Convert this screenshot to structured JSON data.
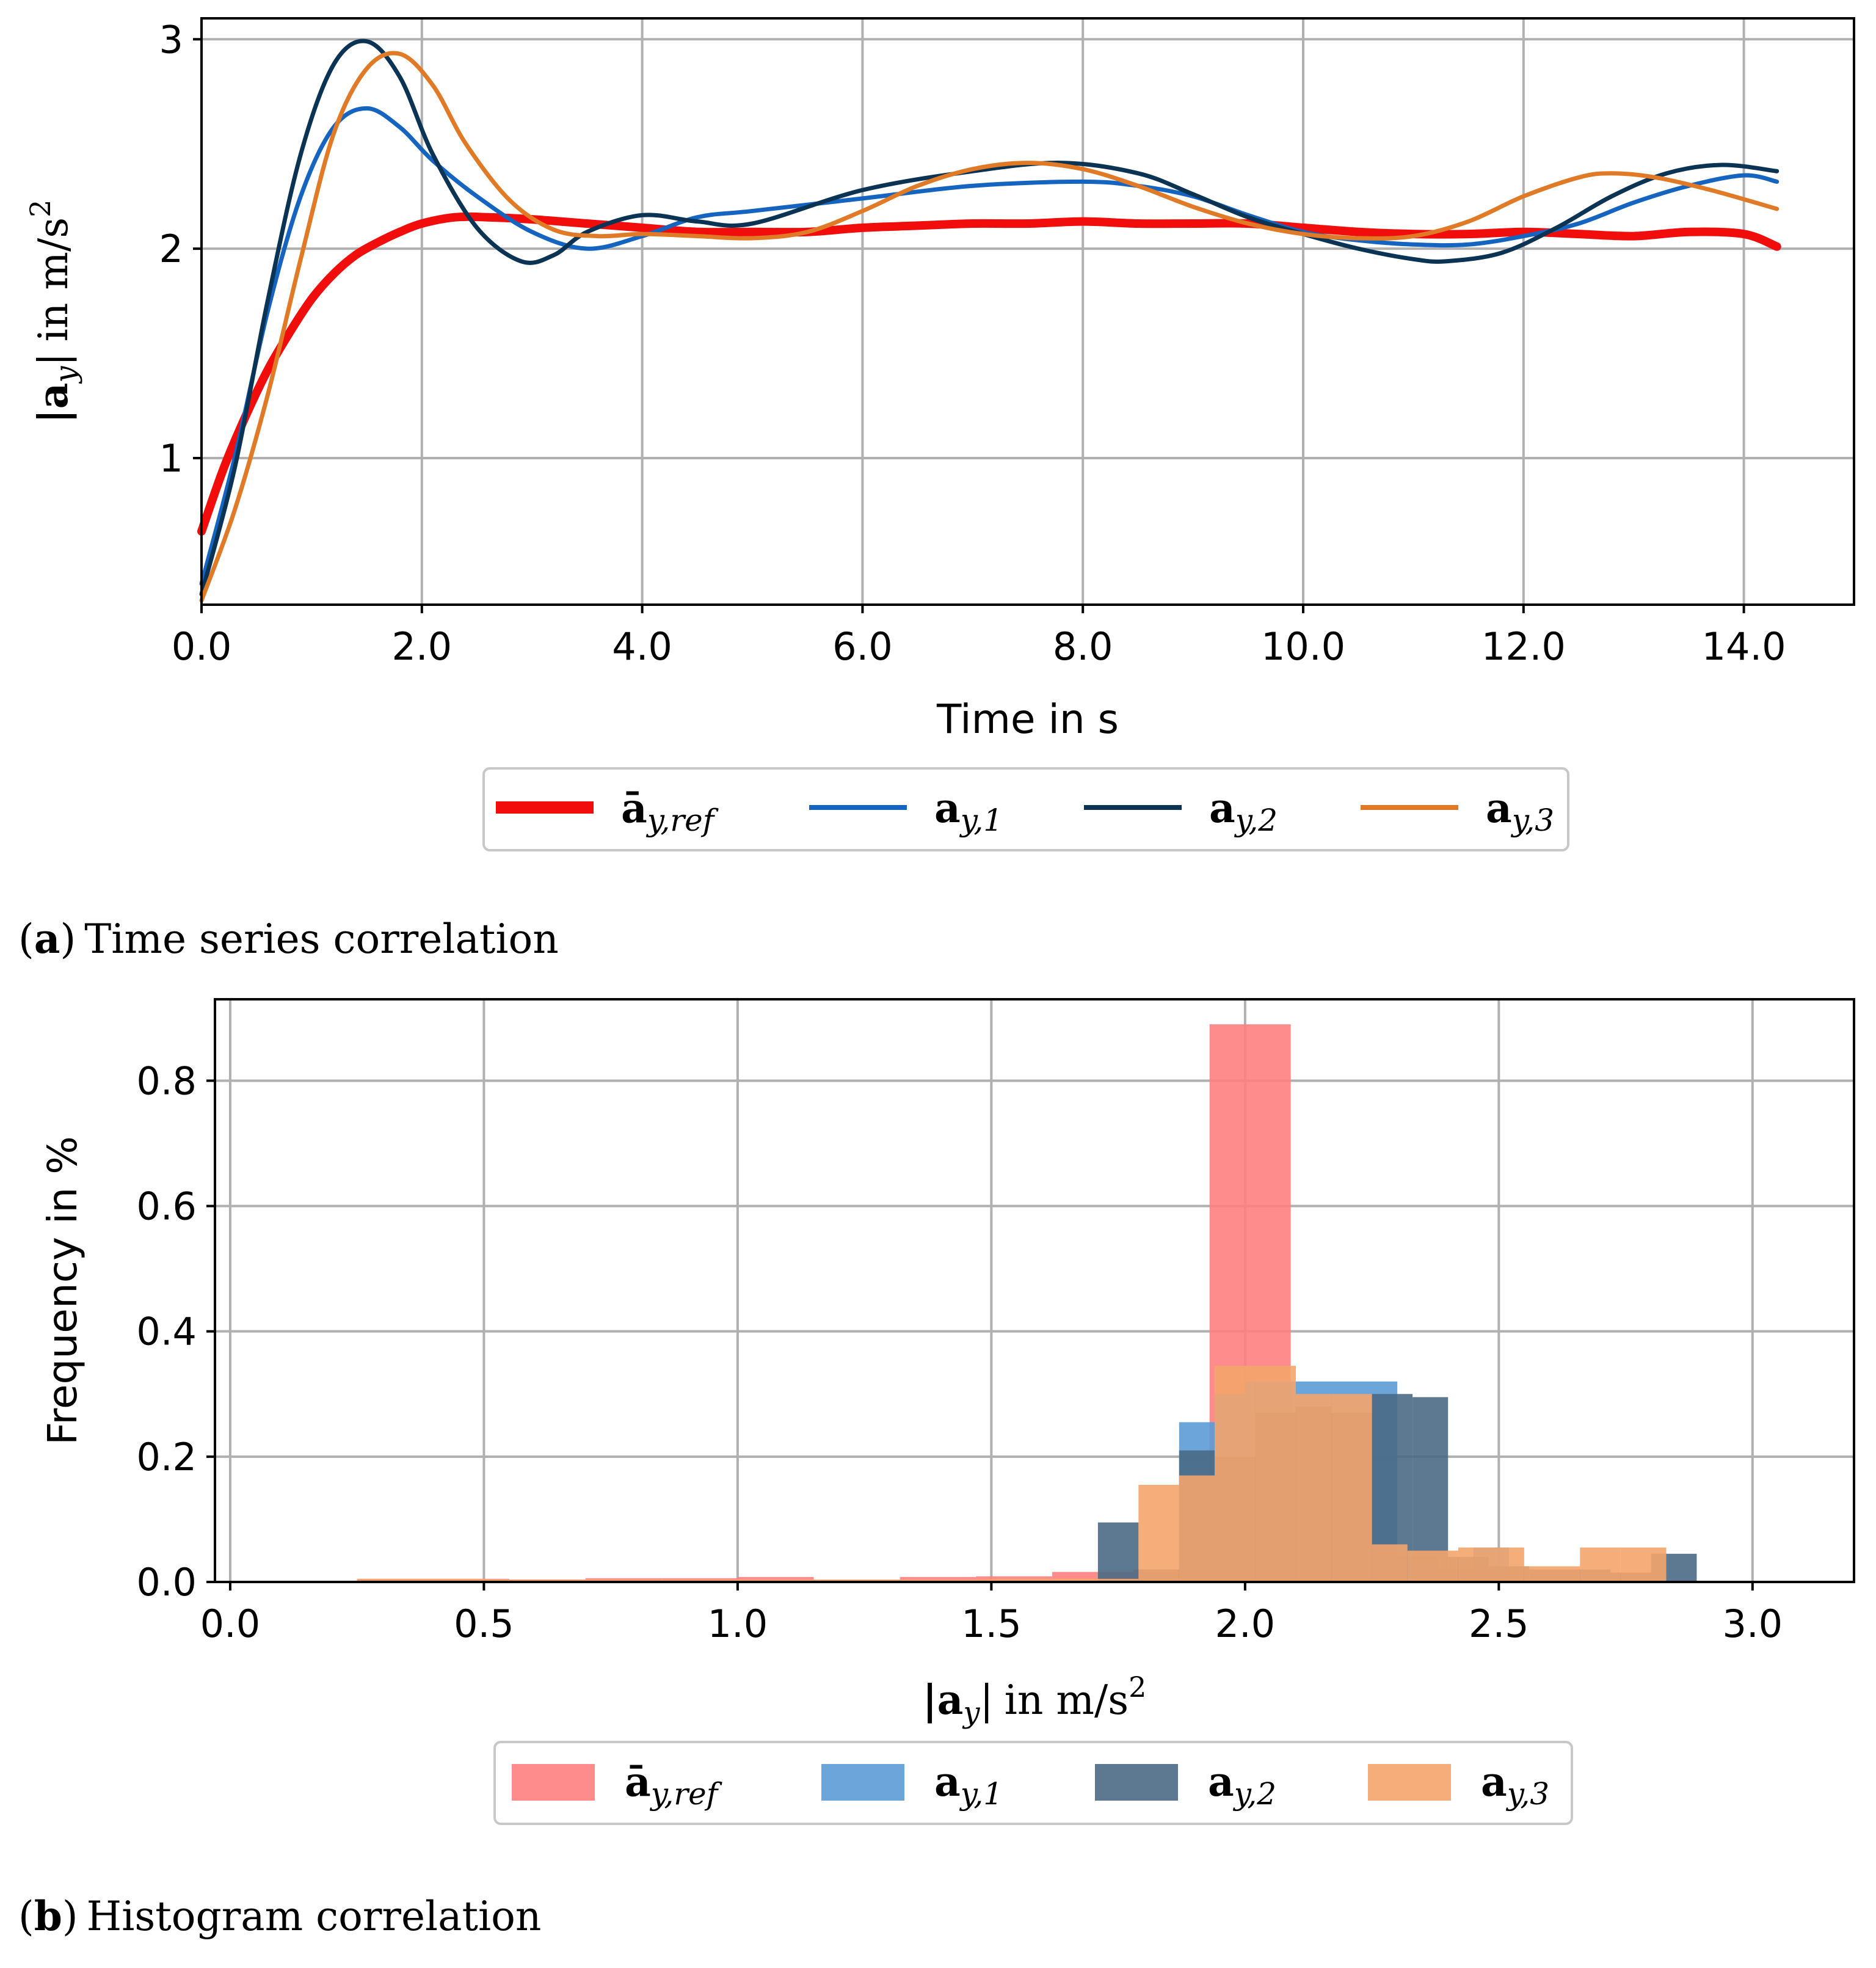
{
  "chart_data": [
    {
      "type": "line",
      "caption_label": "a",
      "caption_text": "Time series correlation",
      "xlabel": "Time in s",
      "ylabel_abs": "|a",
      "ylabel_sub": "y",
      "ylabel_close": "|",
      "ylabel_unit": "in m/s",
      "ylabel_exp": "2",
      "xlim": [
        0,
        15
      ],
      "ylim": [
        0.3,
        3.1
      ],
      "xticks": [
        0,
        2,
        4,
        6,
        8,
        10,
        12,
        14
      ],
      "xtick_labels": [
        "0.0",
        "2.0",
        "4.0",
        "6.0",
        "8.0",
        "10.0",
        "12.0",
        "14.0"
      ],
      "yticks": [
        1,
        2,
        3
      ],
      "ytick_labels": [
        "1",
        "2",
        "3"
      ],
      "grid": true,
      "legend_position": "below",
      "series": [
        {
          "name": "ā_y,ref",
          "legend_main": "ā",
          "legend_sub": "y,ref",
          "color": "#f20d0d",
          "width": "thick",
          "x": [
            0,
            0.2,
            0.4,
            0.6,
            0.8,
            1.0,
            1.2,
            1.4,
            1.6,
            1.8,
            2.0,
            2.3,
            2.6,
            3.0,
            3.5,
            4.0,
            4.5,
            5.0,
            5.5,
            6.0,
            6.5,
            7.0,
            7.5,
            8.0,
            8.5,
            9.0,
            9.5,
            10.0,
            10.5,
            11.0,
            11.5,
            12.0,
            12.5,
            13.0,
            13.5,
            14.0,
            14.3
          ],
          "y": [
            0.65,
            0.95,
            1.2,
            1.42,
            1.6,
            1.76,
            1.88,
            1.97,
            2.03,
            2.08,
            2.12,
            2.15,
            2.15,
            2.14,
            2.12,
            2.1,
            2.08,
            2.08,
            2.08,
            2.1,
            2.11,
            2.12,
            2.12,
            2.13,
            2.12,
            2.12,
            2.12,
            2.1,
            2.08,
            2.07,
            2.07,
            2.08,
            2.07,
            2.06,
            2.08,
            2.07,
            2.01
          ]
        },
        {
          "name": "a_y,1",
          "legend_main": "a",
          "legend_sub": "y,1",
          "color": "#1565c0",
          "width": "normal",
          "x": [
            0,
            0.3,
            0.6,
            0.9,
            1.2,
            1.5,
            1.8,
            2.1,
            2.5,
            3.0,
            3.5,
            4.0,
            4.5,
            5.0,
            6.0,
            7.0,
            8.0,
            8.5,
            9.0,
            9.5,
            10.0,
            10.5,
            11.0,
            11.5,
            12.0,
            12.5,
            13.0,
            13.5,
            14.0,
            14.3
          ],
          "y": [
            0.4,
            1.0,
            1.7,
            2.25,
            2.58,
            2.67,
            2.58,
            2.42,
            2.25,
            2.08,
            2.0,
            2.06,
            2.15,
            2.18,
            2.24,
            2.3,
            2.32,
            2.3,
            2.25,
            2.16,
            2.08,
            2.04,
            2.02,
            2.02,
            2.06,
            2.12,
            2.22,
            2.3,
            2.35,
            2.32
          ]
        },
        {
          "name": "a_y,2",
          "legend_main": "a",
          "legend_sub": "y,2",
          "color": "#0b3354",
          "width": "normal",
          "x": [
            0,
            0.3,
            0.6,
            0.9,
            1.2,
            1.5,
            1.8,
            2.1,
            2.5,
            2.9,
            3.2,
            3.5,
            4.0,
            4.5,
            5.0,
            6.0,
            7.0,
            7.8,
            8.5,
            9.0,
            9.5,
            10.0,
            10.5,
            11.0,
            11.3,
            11.8,
            12.3,
            12.8,
            13.3,
            13.8,
            14.3
          ],
          "y": [
            0.35,
            0.95,
            1.75,
            2.45,
            2.88,
            2.99,
            2.82,
            2.45,
            2.1,
            1.94,
            1.97,
            2.08,
            2.16,
            2.13,
            2.12,
            2.28,
            2.37,
            2.41,
            2.36,
            2.26,
            2.15,
            2.07,
            2.0,
            1.95,
            1.94,
            1.98,
            2.1,
            2.25,
            2.36,
            2.4,
            2.37
          ]
        },
        {
          "name": "a_y,3",
          "legend_main": "a",
          "legend_sub": "y,3",
          "color": "#e07a26",
          "width": "normal",
          "x": [
            0,
            0.3,
            0.6,
            0.9,
            1.2,
            1.5,
            1.8,
            2.1,
            2.4,
            2.8,
            3.2,
            3.6,
            4.0,
            4.5,
            5.0,
            5.5,
            6.0,
            6.5,
            7.0,
            7.5,
            8.0,
            8.5,
            9.0,
            9.5,
            10.0,
            10.5,
            11.0,
            11.5,
            12.0,
            12.5,
            12.8,
            13.2,
            13.7,
            14.3
          ],
          "y": [
            0.32,
            0.75,
            1.3,
            1.95,
            2.55,
            2.86,
            2.93,
            2.78,
            2.5,
            2.23,
            2.09,
            2.06,
            2.07,
            2.06,
            2.05,
            2.08,
            2.18,
            2.3,
            2.38,
            2.41,
            2.38,
            2.3,
            2.2,
            2.12,
            2.07,
            2.05,
            2.06,
            2.13,
            2.25,
            2.34,
            2.36,
            2.34,
            2.28,
            2.19
          ]
        }
      ]
    },
    {
      "type": "histogram",
      "caption_label": "b",
      "caption_text": "Histogram correlation",
      "xlabel_abs": "|a",
      "xlabel_sub": "y",
      "xlabel_close": "|",
      "xlabel_unit": "in m/s",
      "xlabel_exp": "2",
      "ylabel": "Frequency in %",
      "xlim": [
        -0.03,
        3.2
      ],
      "ylim": [
        0,
        0.93
      ],
      "xticks": [
        0,
        0.5,
        1.0,
        1.5,
        2.0,
        2.5,
        3.0
      ],
      "xtick_labels": [
        "0.0",
        "0.5",
        "1.0",
        "1.5",
        "2.0",
        "2.5",
        "3.0"
      ],
      "yticks": [
        0,
        0.2,
        0.4,
        0.6,
        0.8
      ],
      "ytick_labels": [
        "0.0",
        "0.2",
        "0.4",
        "0.6",
        "0.8"
      ],
      "grid": true,
      "legend_position": "below",
      "series": [
        {
          "name": "ā_y,ref",
          "legend_main": "ā",
          "legend_sub": "y,ref",
          "color": "#ff7f7f",
          "edges": [
            0.25,
            0.4,
            0.55,
            0.7,
            0.85,
            1.0,
            1.15,
            1.32,
            1.47,
            1.62,
            1.78,
            1.93,
            2.09
          ],
          "values": [
            0.005,
            0.005,
            0.004,
            0.006,
            0.006,
            0.008,
            0.003,
            0.008,
            0.009,
            0.016,
            0.02,
            0.89
          ]
        },
        {
          "name": "a_y,1",
          "legend_main": "a",
          "legend_sub": "y,1",
          "color": "#5b9bd5",
          "edges": [
            1.87,
            1.94,
            2.0,
            2.15,
            2.3,
            2.38,
            2.45,
            2.52,
            2.6
          ],
          "values": [
            0.255,
            0.3,
            0.32,
            0.32,
            0.04,
            0.02,
            0.055,
            0.0
          ]
        },
        {
          "name": "a_y,2",
          "legend_main": "a",
          "legend_sub": "y,2",
          "color": "#4a6a85",
          "edges": [
            1.71,
            1.79,
            1.87,
            1.94,
            2.02,
            2.1,
            2.17,
            2.25,
            2.33,
            2.4,
            2.48,
            2.56,
            2.64,
            2.72,
            2.8,
            2.89
          ],
          "values": [
            0.095,
            0.02,
            0.21,
            0.2,
            0.27,
            0.28,
            0.27,
            0.3,
            0.295,
            0.04,
            0.025,
            0.02,
            0.02,
            0.015,
            0.045
          ]
        },
        {
          "name": "a_y,3",
          "legend_main": "a",
          "legend_sub": "y,3",
          "color": "#f4a46b",
          "edges": [
            0.25,
            0.5,
            1.0,
            1.5,
            1.79,
            1.87,
            1.94,
            2.02,
            2.1,
            2.17,
            2.25,
            2.32,
            2.42,
            2.55,
            2.66,
            2.74,
            2.83
          ],
          "values": [
            0.005,
            0.004,
            0.004,
            0.005,
            0.155,
            0.17,
            0.345,
            0.345,
            0.3,
            0.3,
            0.06,
            0.05,
            0.055,
            0.025,
            0.055,
            0.055
          ]
        }
      ]
    }
  ]
}
